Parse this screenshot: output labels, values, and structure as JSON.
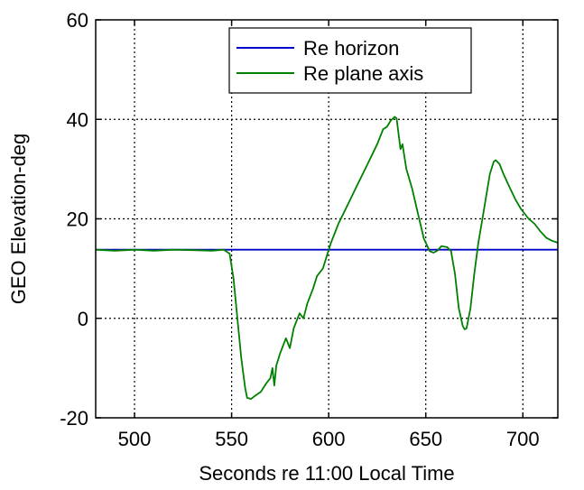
{
  "chart_data": {
    "type": "line",
    "title": "",
    "xlabel": "Seconds re 11:00 Local Time",
    "ylabel": "GEO Elevation-deg",
    "xlim": [
      480,
      718
    ],
    "ylim": [
      -20,
      60
    ],
    "x_ticks": [
      500,
      550,
      600,
      650,
      700
    ],
    "y_ticks": [
      -20,
      0,
      20,
      40,
      60
    ],
    "x_tick_labels": [
      "500",
      "550",
      "600",
      "650",
      "700"
    ],
    "y_tick_labels": [
      "-20",
      "0",
      "20",
      "40",
      "60"
    ],
    "grid": true,
    "legend_position": "top-center",
    "series": [
      {
        "name": "Re horizon",
        "color": "#0000cc",
        "points": [
          [
            480,
            13.8
          ],
          [
            718,
            13.8
          ]
        ]
      },
      {
        "name": "Re plane axis",
        "color": "#008000",
        "points": [
          [
            480,
            13.8
          ],
          [
            490,
            13.6
          ],
          [
            500,
            13.8
          ],
          [
            510,
            13.6
          ],
          [
            520,
            13.8
          ],
          [
            530,
            13.7
          ],
          [
            540,
            13.6
          ],
          [
            546,
            13.8
          ],
          [
            549,
            13.0
          ],
          [
            551,
            8.0
          ],
          [
            553,
            0.0
          ],
          [
            555,
            -8.0
          ],
          [
            557,
            -14.0
          ],
          [
            558,
            -16.0
          ],
          [
            560,
            -16.2
          ],
          [
            562,
            -15.6
          ],
          [
            565,
            -14.8
          ],
          [
            568,
            -13.0
          ],
          [
            570,
            -12.0
          ],
          [
            571,
            -10.0
          ],
          [
            572,
            -13.5
          ],
          [
            573,
            -9.5
          ],
          [
            575,
            -7.0
          ],
          [
            578,
            -4.0
          ],
          [
            580,
            -6.0
          ],
          [
            582,
            -2.0
          ],
          [
            585,
            1.0
          ],
          [
            587,
            0.0
          ],
          [
            589,
            3.0
          ],
          [
            592,
            6.0
          ],
          [
            594,
            8.5
          ],
          [
            597,
            10.0
          ],
          [
            599,
            12.5
          ],
          [
            601,
            15.0
          ],
          [
            605,
            19.0
          ],
          [
            610,
            23.0
          ],
          [
            615,
            27.0
          ],
          [
            620,
            31.0
          ],
          [
            625,
            35.0
          ],
          [
            628,
            38.0
          ],
          [
            630,
            38.5
          ],
          [
            632,
            39.8
          ],
          [
            634,
            40.5
          ],
          [
            635,
            40.2
          ],
          [
            636,
            37.0
          ],
          [
            637,
            34.0
          ],
          [
            638,
            35.0
          ],
          [
            640,
            30.0
          ],
          [
            643,
            26.0
          ],
          [
            646,
            21.0
          ],
          [
            649,
            16.0
          ],
          [
            652,
            13.5
          ],
          [
            654,
            13.2
          ],
          [
            656,
            13.6
          ],
          [
            658,
            14.5
          ],
          [
            661,
            14.3
          ],
          [
            663,
            13.5
          ],
          [
            665,
            9.0
          ],
          [
            667,
            2.0
          ],
          [
            669,
            -1.5
          ],
          [
            670,
            -2.2
          ],
          [
            671,
            -2.0
          ],
          [
            673,
            2.0
          ],
          [
            675,
            9.0
          ],
          [
            677,
            15.0
          ],
          [
            680,
            22.0
          ],
          [
            683,
            29.0
          ],
          [
            685,
            31.5
          ],
          [
            686,
            31.8
          ],
          [
            688,
            31.0
          ],
          [
            690,
            29.0
          ],
          [
            693,
            26.5
          ],
          [
            696,
            24.0
          ],
          [
            699,
            22.0
          ],
          [
            703,
            20.0
          ],
          [
            706,
            19.0
          ],
          [
            709,
            17.5
          ],
          [
            712,
            16.2
          ],
          [
            715,
            15.6
          ],
          [
            718,
            15.2
          ]
        ]
      }
    ]
  }
}
